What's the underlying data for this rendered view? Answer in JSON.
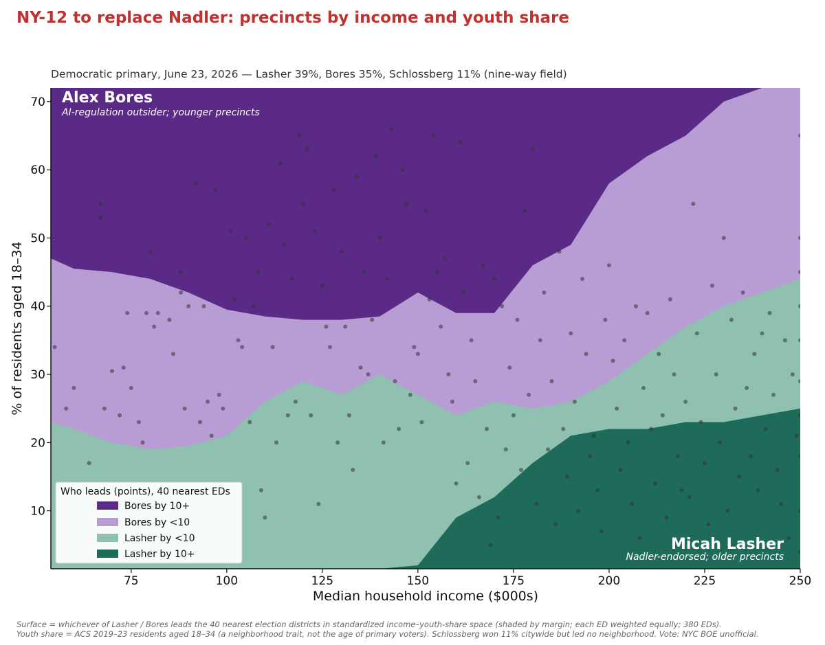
{
  "chart_data": {
    "type": "heatmap",
    "title": "NY-12 to replace Nadler: precincts by income and youth share",
    "subtitle": "Democratic primary, June 23, 2026  —  Lasher 39%, Bores 35%, Schlossberg 11% (nine-way field)",
    "xlabel": "Median household income ($000s)",
    "ylabel": "% of residents aged 18–34",
    "xlim": [
      54,
      250
    ],
    "ylim": [
      1.5,
      72
    ],
    "x_ticks": [
      75,
      100,
      125,
      150,
      175,
      200,
      225,
      250
    ],
    "y_ticks": [
      10,
      20,
      30,
      40,
      50,
      60,
      70
    ],
    "grid": false,
    "legend": {
      "title": "Who leads (points), 40 nearest EDs",
      "placement": "lower-left",
      "entries": [
        {
          "label": "Bores by 10+",
          "color": "#5a2a86"
        },
        {
          "label": "Bores by <10",
          "color": "#b89cd4"
        },
        {
          "label": "Lasher by <10",
          "color": "#8fc0b0"
        },
        {
          "label": "Lasher by 10+",
          "color": "#1e6b5a"
        }
      ]
    },
    "region_boundaries": {
      "description": "y-boundaries (in % aged 18-34) between shaded bands at sampled incomes",
      "x": [
        54,
        60,
        70,
        80,
        90,
        100,
        110,
        120,
        130,
        140,
        150,
        160,
        170,
        180,
        190,
        200,
        210,
        220,
        230,
        240,
        250
      ],
      "bores10_lower_y": [
        47,
        45.5,
        45,
        44,
        42,
        39.5,
        38.5,
        38,
        38,
        38.5,
        42,
        39,
        39,
        46,
        49,
        58,
        62,
        65,
        70,
        72,
        72
      ],
      "lasher_lower_y": [
        23,
        22,
        20,
        19,
        19.5,
        21,
        26,
        29,
        27,
        30,
        27,
        24,
        26,
        25,
        26,
        29,
        33,
        37,
        40,
        42,
        44
      ],
      "lasher10_lower_y": [
        0,
        0,
        0,
        0,
        0,
        0,
        0,
        0,
        0,
        0,
        2,
        9,
        12,
        17,
        21,
        22,
        22,
        23,
        23,
        24,
        25
      ]
    },
    "points": [
      [
        55,
        34
      ],
      [
        58,
        25
      ],
      [
        60,
        28
      ],
      [
        64,
        17
      ],
      [
        67,
        55
      ],
      [
        67,
        53
      ],
      [
        68,
        25
      ],
      [
        70,
        30.5
      ],
      [
        72,
        24
      ],
      [
        73,
        31
      ],
      [
        74,
        39
      ],
      [
        75,
        28
      ],
      [
        77,
        23
      ],
      [
        78,
        20
      ],
      [
        79,
        39
      ],
      [
        80,
        48
      ],
      [
        81,
        37
      ],
      [
        82,
        39
      ],
      [
        85,
        38
      ],
      [
        86,
        33
      ],
      [
        88,
        45
      ],
      [
        88,
        42
      ],
      [
        89,
        25
      ],
      [
        90,
        40
      ],
      [
        92,
        58
      ],
      [
        93,
        23
      ],
      [
        94,
        40
      ],
      [
        95,
        26
      ],
      [
        96,
        21
      ],
      [
        97,
        57
      ],
      [
        98,
        27
      ],
      [
        99,
        25
      ],
      [
        101,
        51
      ],
      [
        102,
        41
      ],
      [
        103,
        35
      ],
      [
        104,
        34
      ],
      [
        105,
        50
      ],
      [
        106,
        23
      ],
      [
        107,
        40
      ],
      [
        108,
        45
      ],
      [
        109,
        13
      ],
      [
        110,
        9
      ],
      [
        111,
        52
      ],
      [
        112,
        34
      ],
      [
        113,
        20
      ],
      [
        114,
        61
      ],
      [
        115,
        49
      ],
      [
        116,
        24
      ],
      [
        117,
        44
      ],
      [
        118,
        26
      ],
      [
        119,
        65
      ],
      [
        120,
        55
      ],
      [
        121,
        63
      ],
      [
        122,
        24
      ],
      [
        123,
        51
      ],
      [
        124,
        11
      ],
      [
        125,
        43
      ],
      [
        126,
        37
      ],
      [
        127,
        34
      ],
      [
        128,
        57
      ],
      [
        129,
        20
      ],
      [
        130,
        48
      ],
      [
        131,
        37
      ],
      [
        132,
        24
      ],
      [
        133,
        16
      ],
      [
        134,
        59
      ],
      [
        135,
        31
      ],
      [
        136,
        45
      ],
      [
        137,
        30
      ],
      [
        138,
        38
      ],
      [
        139,
        62
      ],
      [
        140,
        50
      ],
      [
        141,
        20
      ],
      [
        142,
        44
      ],
      [
        143,
        66
      ],
      [
        144,
        29
      ],
      [
        145,
        22
      ],
      [
        146,
        60
      ],
      [
        147,
        55
      ],
      [
        148,
        27
      ],
      [
        149,
        34
      ],
      [
        150,
        33
      ],
      [
        151,
        23
      ],
      [
        152,
        54
      ],
      [
        153,
        41
      ],
      [
        154,
        65
      ],
      [
        155,
        45
      ],
      [
        156,
        37
      ],
      [
        157,
        47
      ],
      [
        158,
        30
      ],
      [
        159,
        26
      ],
      [
        160,
        14
      ],
      [
        161,
        64
      ],
      [
        162,
        42
      ],
      [
        163,
        17
      ],
      [
        164,
        35
      ],
      [
        165,
        29
      ],
      [
        166,
        12
      ],
      [
        167,
        46
      ],
      [
        168,
        22
      ],
      [
        169,
        5
      ],
      [
        170,
        44
      ],
      [
        171,
        9
      ],
      [
        172,
        40
      ],
      [
        173,
        19
      ],
      [
        174,
        31
      ],
      [
        175,
        24
      ],
      [
        176,
        38
      ],
      [
        177,
        16
      ],
      [
        178,
        54
      ],
      [
        179,
        27
      ],
      [
        180,
        63
      ],
      [
        181,
        11
      ],
      [
        182,
        35
      ],
      [
        183,
        42
      ],
      [
        184,
        19
      ],
      [
        185,
        29
      ],
      [
        186,
        8
      ],
      [
        187,
        48
      ],
      [
        188,
        22
      ],
      [
        189,
        15
      ],
      [
        190,
        36
      ],
      [
        191,
        26
      ],
      [
        192,
        10
      ],
      [
        193,
        44
      ],
      [
        194,
        33
      ],
      [
        195,
        18
      ],
      [
        196,
        21
      ],
      [
        197,
        13
      ],
      [
        198,
        7
      ],
      [
        199,
        38
      ],
      [
        200,
        46
      ],
      [
        201,
        32
      ],
      [
        202,
        25
      ],
      [
        203,
        16
      ],
      [
        204,
        35
      ],
      [
        205,
        20
      ],
      [
        206,
        11
      ],
      [
        207,
        40
      ],
      [
        208,
        6
      ],
      [
        209,
        28
      ],
      [
        210,
        39
      ],
      [
        211,
        22
      ],
      [
        212,
        14
      ],
      [
        213,
        33
      ],
      [
        214,
        24
      ],
      [
        215,
        9
      ],
      [
        216,
        41
      ],
      [
        217,
        30
      ],
      [
        218,
        18
      ],
      [
        219,
        13
      ],
      [
        220,
        26
      ],
      [
        221,
        12
      ],
      [
        222,
        55
      ],
      [
        223,
        36
      ],
      [
        224,
        23
      ],
      [
        225,
        17
      ],
      [
        226,
        8
      ],
      [
        227,
        43
      ],
      [
        228,
        30
      ],
      [
        229,
        20
      ],
      [
        230,
        50
      ],
      [
        231,
        10
      ],
      [
        232,
        38
      ],
      [
        233,
        25
      ],
      [
        234,
        15
      ],
      [
        235,
        42
      ],
      [
        236,
        28
      ],
      [
        237,
        18
      ],
      [
        238,
        33
      ],
      [
        239,
        13
      ],
      [
        240,
        36
      ],
      [
        241,
        22
      ],
      [
        242,
        39
      ],
      [
        243,
        27
      ],
      [
        244,
        16
      ],
      [
        245,
        11
      ],
      [
        246,
        35
      ],
      [
        247,
        6
      ],
      [
        248,
        30
      ],
      [
        249,
        21
      ],
      [
        250,
        65
      ],
      [
        250,
        50
      ],
      [
        250,
        45
      ],
      [
        250,
        40
      ],
      [
        250,
        35
      ],
      [
        250,
        29
      ],
      [
        250,
        24
      ],
      [
        250,
        18
      ],
      [
        250,
        10
      ],
      [
        250,
        4
      ]
    ]
  },
  "annotations": {
    "bores_name": "Alex Bores",
    "bores_desc": "AI-regulation outsider; younger precincts",
    "lasher_name": "Micah Lasher",
    "lasher_desc": "Nadler-endorsed; older precincts"
  },
  "footnote": {
    "line1": "Surface = whichever of Lasher / Bores leads the 40 nearest election districts in standardized income–youth-share space (shaded by margin; each ED weighted equally; 380 EDs).",
    "line2": "Youth share = ACS 2019–23 residents aged 18–34 (a neighborhood trait, not the age of primary voters).  Schlossberg won 11% citywide but led no neighborhood.  Vote: NYC BOE unofficial."
  }
}
